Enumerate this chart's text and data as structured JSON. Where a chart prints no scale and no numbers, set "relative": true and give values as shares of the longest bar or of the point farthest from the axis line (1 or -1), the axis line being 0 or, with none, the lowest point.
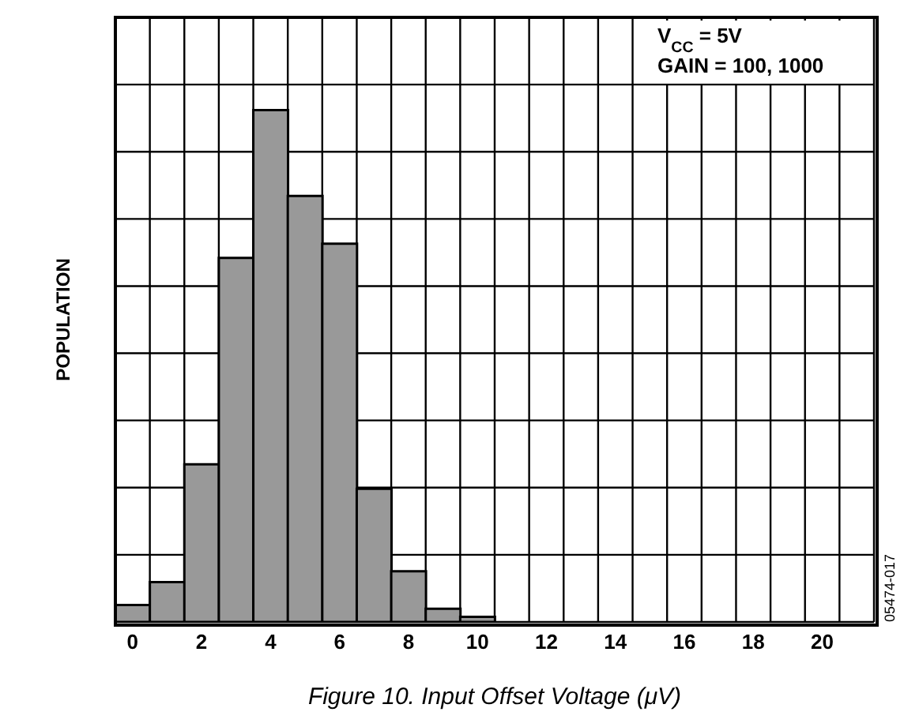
{
  "chart_data": {
    "type": "bar",
    "relative": true,
    "grid": true,
    "xlabel": "Figure 10. Input Offset Voltage (μV)",
    "ylabel": "POPULATION",
    "categories": [
      "0",
      null,
      "2",
      null,
      "4",
      null,
      "6",
      null,
      "8",
      null,
      "10",
      null,
      "12",
      null,
      "14",
      null,
      "16",
      null,
      "18",
      null,
      "20",
      null
    ],
    "values": [
      0.033,
      0.078,
      0.308,
      0.711,
      1,
      0.832,
      0.739,
      0.26,
      0.099,
      0.026,
      0.01,
      0,
      0,
      0,
      0,
      0,
      0,
      0,
      0,
      0,
      0,
      0
    ],
    "color": "#999999",
    "annotations": [
      "V$_{CC}$ = 5V",
      "GAIN = 100, 1000",
      "05474-017"
    ]
  }
}
